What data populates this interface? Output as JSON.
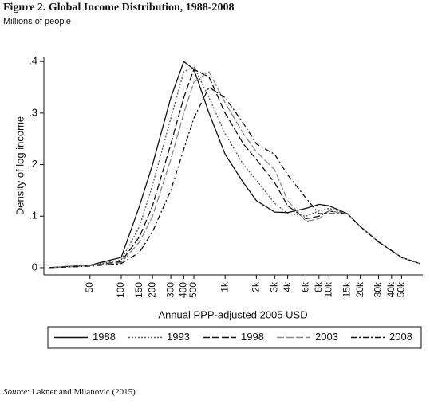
{
  "chart_data": {
    "type": "line",
    "title": "Figure 2. Global Income Distribution, 1988-2008",
    "subtitle": "Millions of people",
    "x_label": "Annual PPP-adjusted 2005 USD",
    "y_label": "Density of log income",
    "source_label": "Source",
    "source_text": ": Lakner and Milanovic (2015)",
    "x_scale": "log",
    "legend": "bottom",
    "x": [
      20,
      50,
      100,
      150,
      200,
      300,
      400,
      500,
      700,
      1000,
      1500,
      2000,
      3000,
      4000,
      6000,
      8000,
      10000,
      15000,
      20000,
      30000,
      50000,
      75000
    ],
    "series": [
      {
        "name": "1988",
        "color": "#111111",
        "dash": "solid",
        "values": [
          0,
          0.005,
          0.02,
          0.12,
          0.2,
          0.33,
          0.4,
          0.385,
          0.3,
          0.22,
          0.165,
          0.13,
          0.108,
          0.107,
          0.115,
          0.123,
          0.12,
          0.105,
          0.08,
          0.05,
          0.02,
          0.008
        ]
      },
      {
        "name": "1993",
        "color": "#555555",
        "dash": "dot",
        "values": [
          0,
          0.005,
          0.015,
          0.08,
          0.16,
          0.29,
          0.38,
          0.39,
          0.33,
          0.26,
          0.2,
          0.17,
          0.125,
          0.105,
          0.1,
          0.11,
          0.115,
          0.105,
          0.08,
          0.05,
          0.02,
          0.008
        ]
      },
      {
        "name": "1998",
        "color": "#111111",
        "dash": "longdash",
        "values": [
          0,
          0.004,
          0.012,
          0.06,
          0.12,
          0.24,
          0.33,
          0.385,
          0.37,
          0.3,
          0.24,
          0.21,
          0.165,
          0.12,
          0.095,
          0.1,
          0.11,
          0.105,
          0.08,
          0.05,
          0.02,
          0.008
        ]
      },
      {
        "name": "2003",
        "color": "#888888",
        "dash": "longdash",
        "values": [
          0,
          0.004,
          0.01,
          0.05,
          0.1,
          0.21,
          0.3,
          0.36,
          0.38,
          0.32,
          0.26,
          0.225,
          0.19,
          0.13,
          0.09,
          0.095,
          0.11,
          0.105,
          0.08,
          0.05,
          0.02,
          0.008
        ]
      },
      {
        "name": "2008",
        "color": "#111111",
        "dash": "dashdot",
        "values": [
          0,
          0.003,
          0.008,
          0.03,
          0.07,
          0.15,
          0.23,
          0.29,
          0.35,
          0.33,
          0.28,
          0.24,
          0.22,
          0.18,
          0.135,
          0.105,
          0.105,
          0.105,
          0.08,
          0.05,
          0.02,
          0.008
        ]
      }
    ],
    "xlim": [
      18,
      80000
    ],
    "ylim": [
      -0.014,
      0.408
    ],
    "xticks": [
      50,
      100,
      150,
      200,
      300,
      400,
      500,
      {
        "value": 1000,
        "label": "1k"
      },
      {
        "value": 2000,
        "label": "2k"
      },
      {
        "value": 3000,
        "label": "3k"
      },
      {
        "value": 4000,
        "label": "4k"
      },
      {
        "value": 6000,
        "label": "6k"
      },
      {
        "value": 8000,
        "label": "8k"
      },
      {
        "value": 10000,
        "label": "10k"
      },
      {
        "value": 15000,
        "label": "15k"
      },
      {
        "value": 20000,
        "label": "20k"
      },
      {
        "value": 30000,
        "label": "30k"
      },
      {
        "value": 40000,
        "label": "40k"
      },
      {
        "value": 50000,
        "label": "50k"
      }
    ],
    "yticks": [
      0,
      {
        "value": 0.1,
        "label": ".1"
      },
      {
        "value": 0.2,
        "label": ".2"
      },
      {
        "value": 0.3,
        "label": ".3"
      },
      {
        "value": 0.4,
        "label": ".4"
      }
    ]
  }
}
